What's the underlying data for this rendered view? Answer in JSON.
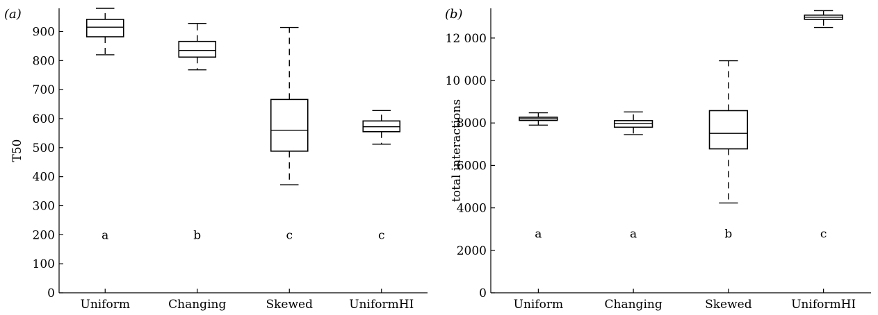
{
  "chart_data": [
    {
      "type": "boxplot",
      "panel_label": "(a)",
      "ylabel": "T50",
      "ylim": [
        0,
        980
      ],
      "yticks": [
        0,
        100,
        200,
        300,
        400,
        500,
        600,
        700,
        800,
        900
      ],
      "ytick_labels": [
        "0",
        "100",
        "200",
        "300",
        "400",
        "500",
        "600",
        "700",
        "800",
        "900"
      ],
      "categories": [
        "Uniform",
        "Changing",
        "Skewed",
        "UniformHI"
      ],
      "boxes": [
        {
          "whisker_low": 820,
          "q1": 882,
          "median": 915,
          "q3": 942,
          "whisker_high": 980
        },
        {
          "whisker_low": 768,
          "q1": 812,
          "median": 835,
          "q3": 866,
          "whisker_high": 928
        },
        {
          "whisker_low": 372,
          "q1": 488,
          "median": 560,
          "q3": 666,
          "whisker_high": 914
        },
        {
          "whisker_low": 512,
          "q1": 555,
          "median": 572,
          "q3": 592,
          "whisker_high": 628
        }
      ],
      "significance_labels": [
        "a",
        "b",
        "c",
        "c"
      ],
      "significance_y": 200
    },
    {
      "type": "boxplot",
      "panel_label": "(b)",
      "ylabel": "total interactions",
      "ylim": [
        0,
        13400
      ],
      "yticks": [
        0,
        2000,
        4000,
        6000,
        8000,
        10000,
        12000
      ],
      "ytick_labels": [
        "0",
        "2000",
        "4000",
        "6000",
        "8000",
        "10 000",
        "12 000"
      ],
      "categories": [
        "Uniform",
        "Changing",
        "Skewed",
        "UniformHI"
      ],
      "boxes": [
        {
          "whisker_low": 7900,
          "q1": 8120,
          "median": 8200,
          "q3": 8270,
          "whisker_high": 8480
        },
        {
          "whisker_low": 7450,
          "q1": 7800,
          "median": 7970,
          "q3": 8110,
          "whisker_high": 8520
        },
        {
          "whisker_low": 4230,
          "q1": 6780,
          "median": 7510,
          "q3": 8580,
          "whisker_high": 10930
        },
        {
          "whisker_low": 12500,
          "q1": 12880,
          "median": 12980,
          "q3": 13080,
          "whisker_high": 13290
        }
      ],
      "significance_labels": [
        "a",
        "a",
        "b",
        "c"
      ],
      "significance_y": 2800
    }
  ]
}
